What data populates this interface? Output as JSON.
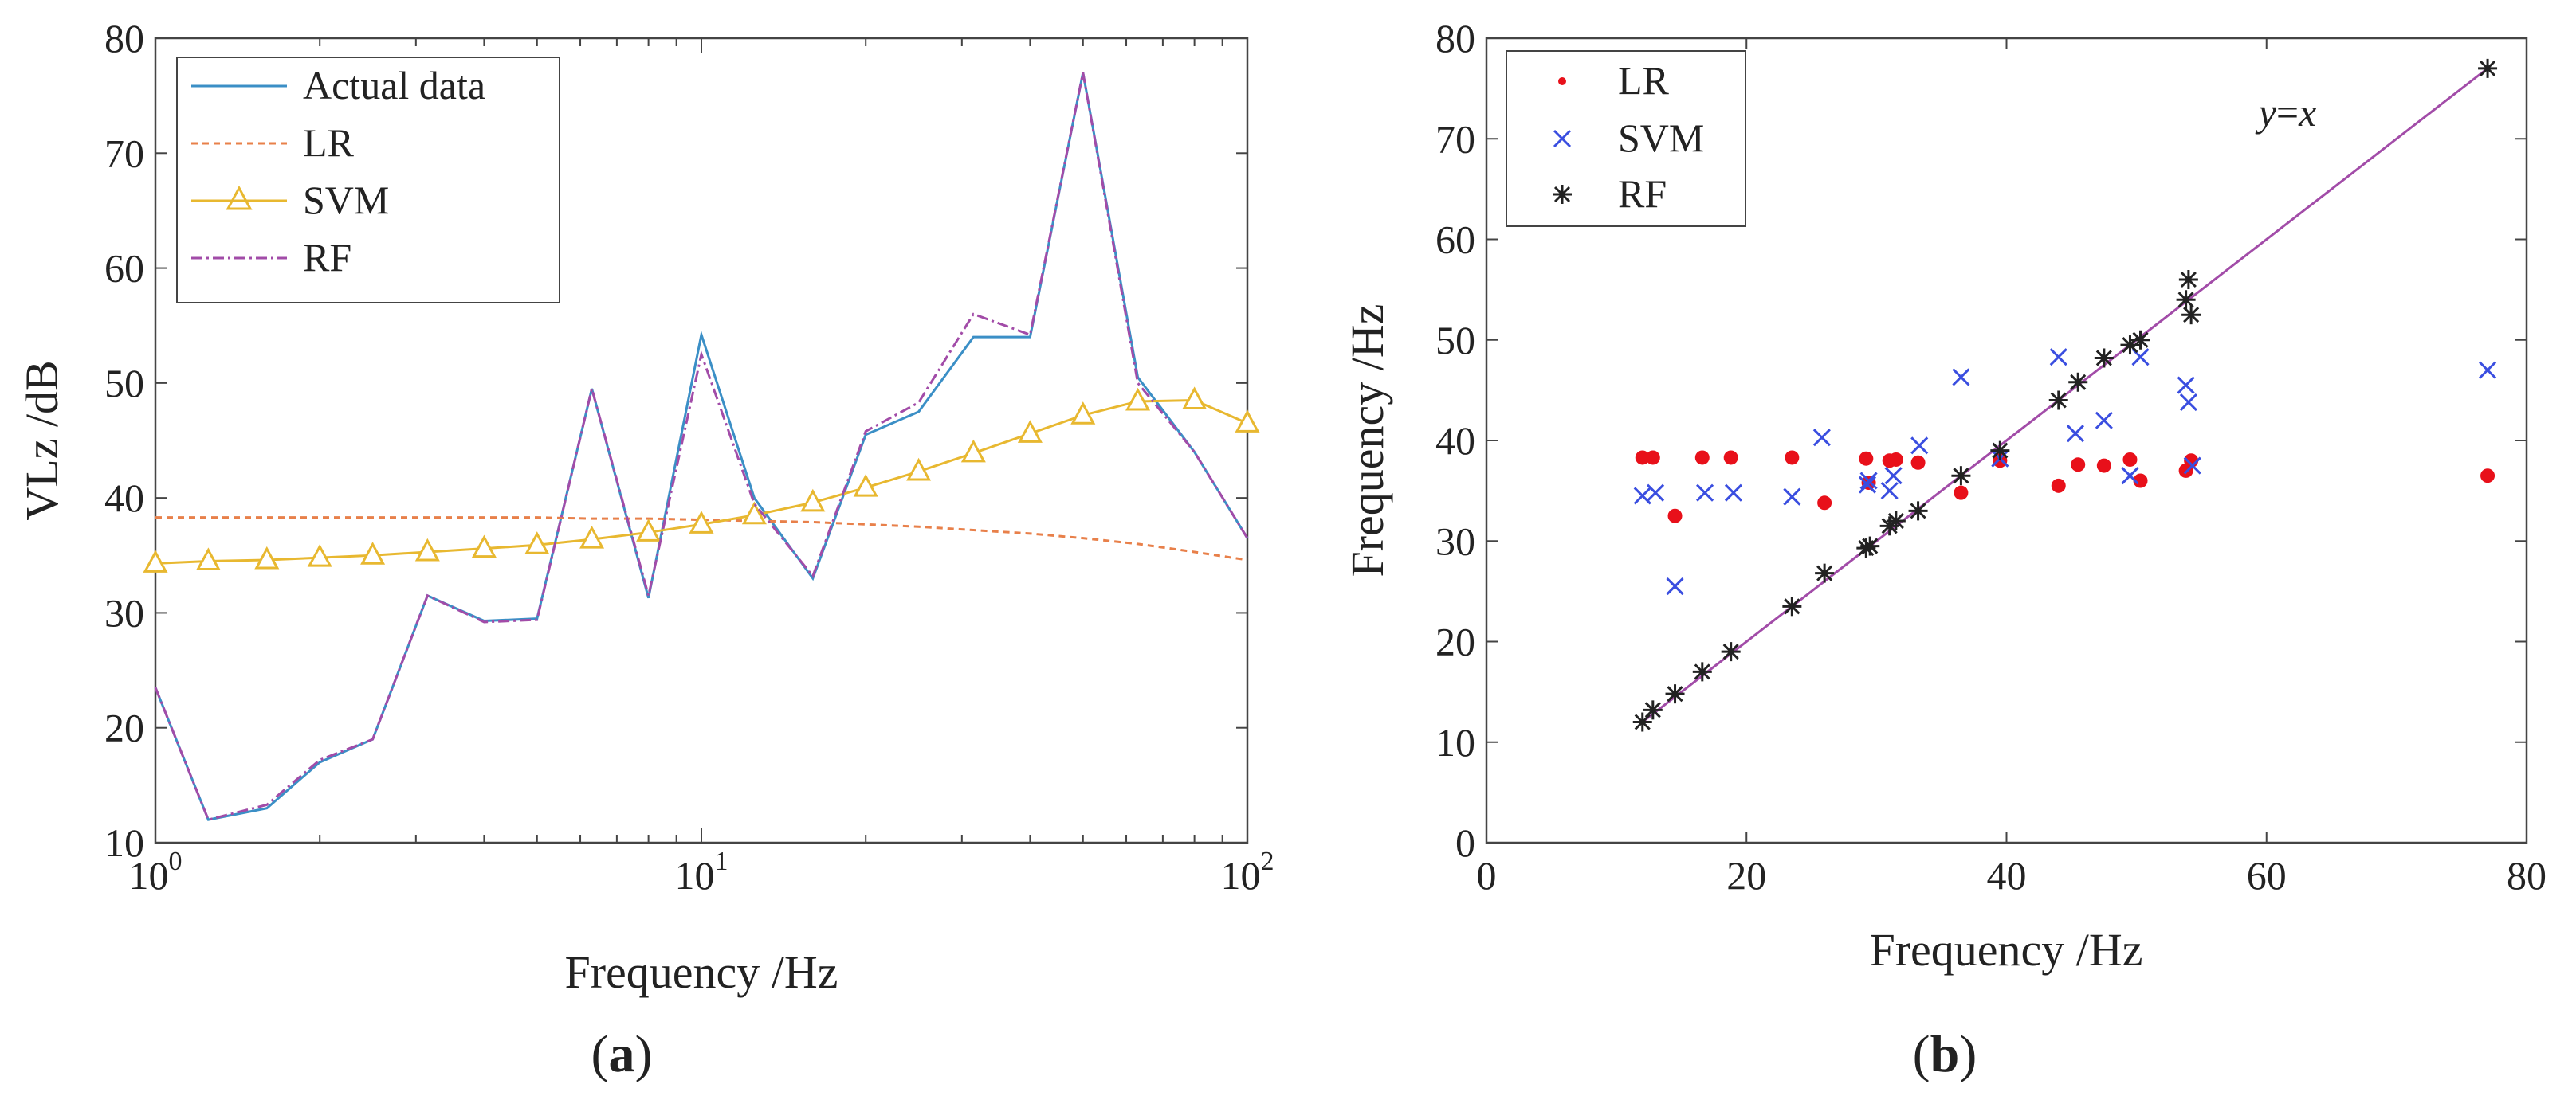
{
  "chart_data": [
    {
      "id": "a",
      "panel_label": "(a)",
      "panel_letter": "a",
      "type": "line",
      "xscale": "log",
      "xlabel": "Frequency /Hz",
      "ylabel": "VLz /dB",
      "xlim": [
        1,
        100
      ],
      "ylim": [
        10,
        80
      ],
      "xticks": [
        {
          "value": 1,
          "base": "10",
          "exp": "0"
        },
        {
          "value": 10,
          "base": "10",
          "exp": "1"
        },
        {
          "value": 100,
          "base": "10",
          "exp": "2"
        }
      ],
      "yticks": [
        10,
        20,
        30,
        40,
        50,
        60,
        70,
        80
      ],
      "legend_position": "top-left",
      "x": [
        1,
        1.25,
        1.6,
        2,
        2.5,
        3.15,
        4,
        5,
        6.3,
        8,
        10,
        12.5,
        16,
        20,
        25,
        31.5,
        40,
        50,
        63,
        80,
        100
      ],
      "series": [
        {
          "name": "Actual data",
          "color": "#3b8fc6",
          "style": "solid",
          "values": [
            23.5,
            12,
            13,
            17,
            19,
            31.5,
            29.3,
            29.5,
            49.5,
            31.3,
            54.2,
            40,
            33,
            45.5,
            47.5,
            54,
            54,
            77,
            50.5,
            44,
            36.5
          ]
        },
        {
          "name": "LR",
          "color": "#e8804a",
          "style": "dashed",
          "values": [
            38.3,
            38.3,
            38.3,
            38.3,
            38.3,
            38.3,
            38.3,
            38.3,
            38.2,
            38.2,
            38.1,
            38.0,
            37.9,
            37.7,
            37.5,
            37.2,
            36.9,
            36.5,
            36.0,
            35.3,
            34.6
          ]
        },
        {
          "name": "SVM",
          "color": "#e8b830",
          "style": "solid-triangle",
          "values": [
            34.3,
            34.5,
            34.6,
            34.8,
            35,
            35.3,
            35.6,
            35.9,
            36.4,
            37,
            37.7,
            38.5,
            39.6,
            40.9,
            42.3,
            43.9,
            45.6,
            47.2,
            48.4,
            48.5,
            46.5
          ]
        },
        {
          "name": "RF",
          "color": "#a24ca8",
          "style": "dashdot",
          "values": [
            23.5,
            12,
            13.3,
            17.2,
            19,
            31.5,
            29.2,
            29.4,
            49.5,
            31.5,
            52.5,
            39.5,
            33.2,
            45.8,
            48.3,
            56,
            54.2,
            77,
            50,
            44,
            36.5
          ]
        }
      ]
    },
    {
      "id": "b",
      "panel_label": "(b)",
      "panel_letter": "b",
      "type": "scatter",
      "xlabel": "Frequency /Hz",
      "ylabel": "Frequency /Hz",
      "xlim": [
        0,
        80
      ],
      "ylim": [
        0,
        80
      ],
      "xticks": [
        0,
        20,
        40,
        60,
        80
      ],
      "yticks": [
        0,
        10,
        20,
        30,
        40,
        50,
        60,
        70,
        80
      ],
      "legend_position": "top-left",
      "reference_line": {
        "label_lhs": "y",
        "label_eq": "=",
        "label_rhs": "x",
        "from": [
          12,
          12
        ],
        "to": [
          77,
          77
        ],
        "color": "#a24ca8"
      },
      "series": [
        {
          "name": "LR",
          "color": "#e8101a",
          "marker": "dot",
          "points": [
            [
              12,
              38.3
            ],
            [
              12.8,
              38.3
            ],
            [
              14.5,
              32.5
            ],
            [
              16.6,
              38.3
            ],
            [
              18.8,
              38.3
            ],
            [
              23.5,
              38.3
            ],
            [
              26,
              33.8
            ],
            [
              29.2,
              38.2
            ],
            [
              29.4,
              35.8
            ],
            [
              31,
              38
            ],
            [
              31.5,
              38.1
            ],
            [
              33.2,
              37.8
            ],
            [
              36.5,
              34.8
            ],
            [
              39.5,
              38
            ],
            [
              44,
              35.5
            ],
            [
              45.5,
              37.6
            ],
            [
              47.5,
              37.5
            ],
            [
              49.5,
              38.1
            ],
            [
              50.3,
              36
            ],
            [
              53.8,
              37
            ],
            [
              54.2,
              38
            ],
            [
              77,
              36.5
            ]
          ]
        },
        {
          "name": "SVM",
          "color": "#3a4ee0",
          "marker": "x",
          "points": [
            [
              12,
              34.5
            ],
            [
              13,
              34.8
            ],
            [
              14.5,
              25.5
            ],
            [
              16.8,
              34.8
            ],
            [
              19,
              34.8
            ],
            [
              23.5,
              34.4
            ],
            [
              25.8,
              40.3
            ],
            [
              29.3,
              35.6
            ],
            [
              29.4,
              36
            ],
            [
              31,
              35
            ],
            [
              31.3,
              36.5
            ],
            [
              33.3,
              39.5
            ],
            [
              36.5,
              46.3
            ],
            [
              39.5,
              38.2
            ],
            [
              44,
              48.3
            ],
            [
              45.3,
              40.7
            ],
            [
              47.5,
              42
            ],
            [
              49.5,
              36.5
            ],
            [
              50.3,
              48.3
            ],
            [
              53.8,
              45.5
            ],
            [
              54,
              43.8
            ],
            [
              54.3,
              37.5
            ],
            [
              77,
              47
            ]
          ]
        },
        {
          "name": "RF",
          "color": "#222222",
          "marker": "star",
          "points": [
            [
              12,
              12
            ],
            [
              12.8,
              13.2
            ],
            [
              14.5,
              14.8
            ],
            [
              16.6,
              17
            ],
            [
              18.8,
              19
            ],
            [
              23.5,
              23.5
            ],
            [
              26,
              26.8
            ],
            [
              29.2,
              29.3
            ],
            [
              29.5,
              29.5
            ],
            [
              31,
              31.5
            ],
            [
              31.5,
              32
            ],
            [
              33.2,
              33
            ],
            [
              36.5,
              36.5
            ],
            [
              39.5,
              39
            ],
            [
              44,
              44
            ],
            [
              45.5,
              45.8
            ],
            [
              47.5,
              48.2
            ],
            [
              49.5,
              49.5
            ],
            [
              50.3,
              50
            ],
            [
              53.8,
              54
            ],
            [
              54,
              56
            ],
            [
              54.2,
              52.5
            ],
            [
              77,
              77
            ]
          ]
        }
      ]
    }
  ]
}
